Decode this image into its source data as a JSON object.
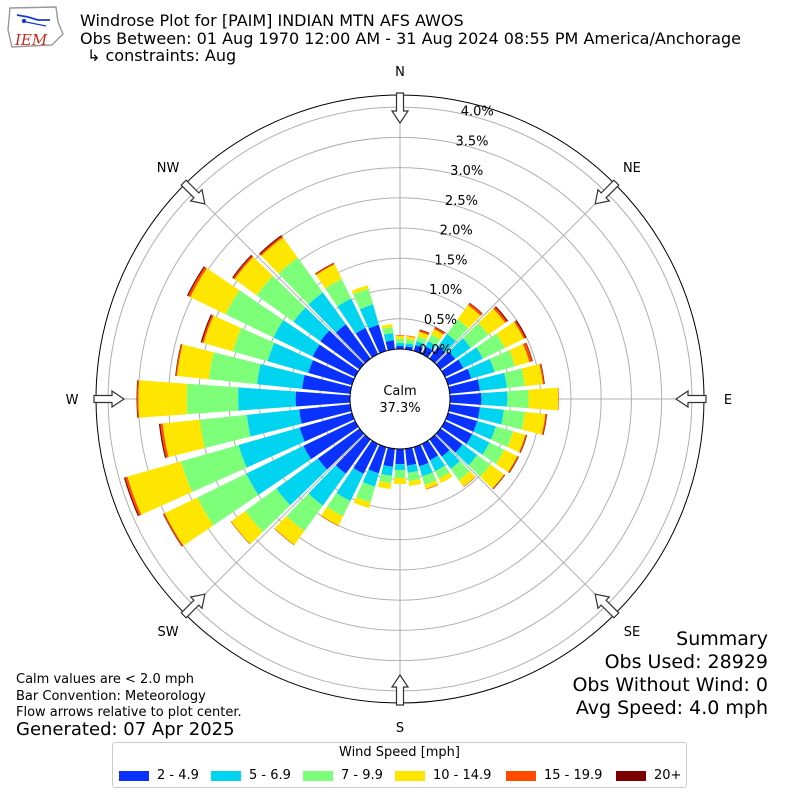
{
  "header": {
    "logo_text": "IEM",
    "title_line1": "Windrose Plot for [PAIM] INDIAN MTN AFS AWOS",
    "title_line2": "Obs Between: 01 Aug 1970 12:00 AM - 31 Aug 2024 08:55 PM America/Anchorage",
    "title_line3": "↳ constraints: Aug"
  },
  "notes": {
    "line1": "Calm values are < 2.0 mph",
    "line2": "Bar Convention: Meteorology",
    "line3": "Flow arrows relative to plot center.",
    "generated": "Generated: 07 Apr 2025"
  },
  "summary": {
    "heading": "Summary",
    "obs_used": "Obs Used: 28929",
    "obs_without_wind": "Obs Without Wind: 0",
    "avg_speed": "Avg Speed: 4.0 mph"
  },
  "calm": {
    "label": "Calm",
    "value": "37.3%"
  },
  "legend": {
    "title": "Wind Speed [mph]",
    "items": [
      {
        "label": "2 - 4.9",
        "color": "#0a32ff"
      },
      {
        "label": "5 - 6.9",
        "color": "#00d4f0"
      },
      {
        "label": "7 - 9.9",
        "color": "#7dff7a"
      },
      {
        "label": "10 - 14.9",
        "color": "#ffe600"
      },
      {
        "label": "15 - 19.9",
        "color": "#ff4a00"
      },
      {
        "label": "20+",
        "color": "#7f0000"
      }
    ]
  },
  "chart_data": {
    "type": "windrose",
    "units": "%",
    "radial_ticks": [
      "0.0%",
      "0.5%",
      "1.0%",
      "1.5%",
      "2.0%",
      "2.5%",
      "3.0%",
      "3.5%",
      "4.0%"
    ],
    "radial_max": 4.2,
    "calm_percent": 37.3,
    "cardinal_labels": [
      "N",
      "NE",
      "E",
      "SE",
      "S",
      "SW",
      "W",
      "NW"
    ],
    "speed_bins": [
      "2 - 4.9",
      "5 - 6.9",
      "7 - 9.9",
      "10 - 14.9",
      "15 - 19.9",
      "20+"
    ],
    "directions_deg": [
      0,
      10,
      20,
      30,
      40,
      50,
      60,
      70,
      80,
      90,
      100,
      110,
      120,
      130,
      140,
      150,
      160,
      170,
      180,
      190,
      200,
      210,
      220,
      230,
      240,
      250,
      260,
      270,
      280,
      290,
      300,
      310,
      320,
      330,
      340,
      350
    ],
    "cumulative": [
      [
        0.05,
        0.1,
        0.17,
        0.22,
        0.23,
        0.23
      ],
      [
        0.05,
        0.1,
        0.17,
        0.22,
        0.23,
        0.23
      ],
      [
        0.1,
        0.17,
        0.25,
        0.33,
        0.36,
        0.37
      ],
      [
        0.14,
        0.24,
        0.36,
        0.46,
        0.49,
        0.5
      ],
      [
        0.25,
        0.5,
        0.8,
        1.09,
        1.13,
        1.14
      ],
      [
        0.3,
        0.62,
        0.98,
        1.32,
        1.36,
        1.38
      ],
      [
        0.34,
        0.7,
        1.1,
        1.45,
        1.48,
        1.5
      ],
      [
        0.4,
        0.8,
        1.15,
        1.4,
        1.45,
        1.46
      ],
      [
        0.5,
        0.95,
        1.25,
        1.55,
        1.57,
        1.58
      ],
      [
        0.52,
        0.95,
        1.3,
        1.79,
        1.8,
        1.8
      ],
      [
        0.5,
        0.9,
        1.25,
        1.59,
        1.61,
        1.62
      ],
      [
        0.5,
        0.82,
        1.12,
        1.33,
        1.35,
        1.36
      ],
      [
        0.5,
        0.82,
        1.09,
        1.33,
        1.35,
        1.36
      ],
      [
        0.45,
        0.75,
        1.02,
        1.3,
        1.31,
        1.32
      ],
      [
        0.35,
        0.6,
        0.83,
        0.96,
        0.97,
        0.97
      ],
      [
        0.3,
        0.5,
        0.64,
        0.72,
        0.72,
        0.72
      ],
      [
        0.33,
        0.5,
        0.65,
        0.72,
        0.73,
        0.73
      ],
      [
        0.28,
        0.4,
        0.54,
        0.62,
        0.62,
        0.62
      ],
      [
        0.25,
        0.35,
        0.48,
        0.58,
        0.58,
        0.58
      ],
      [
        0.3,
        0.45,
        0.57,
        0.67,
        0.67,
        0.67
      ],
      [
        0.45,
        0.68,
        0.95,
        1.05,
        1.05,
        1.05
      ],
      [
        0.55,
        1.05,
        1.33,
        1.5,
        1.51,
        1.51
      ],
      [
        0.7,
        1.35,
        1.87,
        2.15,
        2.16,
        2.16
      ],
      [
        0.85,
        1.7,
        2.33,
        2.62,
        2.63,
        2.63
      ],
      [
        0.95,
        2.0,
        2.9,
        3.5,
        3.52,
        3.53
      ],
      [
        0.9,
        1.95,
        2.94,
        3.86,
        3.9,
        3.92
      ],
      [
        0.85,
        1.72,
        2.5,
        3.12,
        3.16,
        3.18
      ],
      [
        0.9,
        1.85,
        2.7,
        3.5,
        3.52,
        3.53
      ],
      [
        0.8,
        1.55,
        2.35,
        2.88,
        2.9,
        2.91
      ],
      [
        0.75,
        1.45,
        2.05,
        2.55,
        2.58,
        2.6
      ],
      [
        0.78,
        1.5,
        2.38,
        3.03,
        3.07,
        3.09
      ],
      [
        0.8,
        1.35,
        2.1,
        2.55,
        2.58,
        2.6
      ],
      [
        0.7,
        1.35,
        2.06,
        2.47,
        2.5,
        2.52
      ],
      [
        0.48,
        1.02,
        1.38,
        1.65,
        1.67,
        1.68
      ],
      [
        0.45,
        0.8,
        1.07,
        1.13,
        1.13,
        1.13
      ],
      [
        0.15,
        0.27,
        0.37,
        0.42,
        0.42,
        0.42
      ]
    ]
  }
}
